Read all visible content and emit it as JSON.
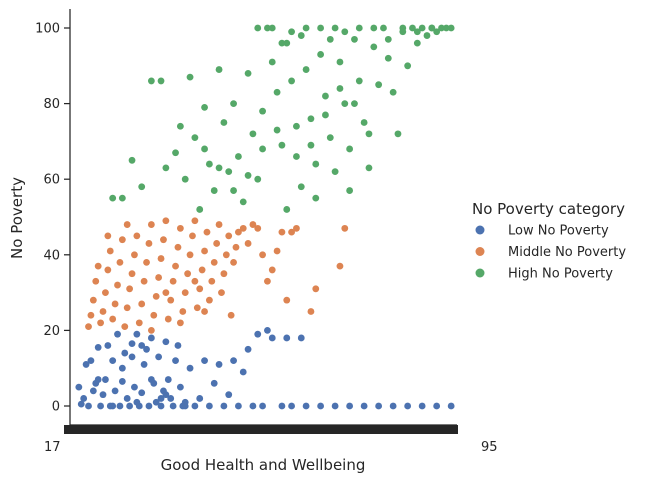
{
  "chart_data": {
    "type": "scatter",
    "title": "",
    "xlabel": "Good Health and Wellbeing",
    "ylabel": "No Poverty",
    "ylim": [
      -3,
      105
    ],
    "yticks": [
      0,
      20,
      40,
      60,
      80,
      100
    ],
    "x_tick_first_label": "17",
    "x_tick_last_label": "95",
    "xlim": [
      17,
      96
    ],
    "grid": false,
    "legend": {
      "title": "No Poverty category",
      "placement": "right"
    },
    "series": [
      {
        "name": "Low No Poverty",
        "color": "#4c72b0",
        "points": [
          [
            18,
            5
          ],
          [
            18.5,
            0.5
          ],
          [
            19,
            2
          ],
          [
            19.5,
            11
          ],
          [
            20,
            0
          ],
          [
            20.5,
            12
          ],
          [
            21,
            4
          ],
          [
            21.5,
            6
          ],
          [
            22,
            15.5
          ],
          [
            22.5,
            0
          ],
          [
            23,
            3
          ],
          [
            23.5,
            7
          ],
          [
            24,
            16
          ],
          [
            24.5,
            0
          ],
          [
            25,
            12
          ],
          [
            25.5,
            4
          ],
          [
            26,
            19
          ],
          [
            26.5,
            0
          ],
          [
            27,
            6.5
          ],
          [
            27.5,
            14
          ],
          [
            28,
            2
          ],
          [
            28.5,
            0
          ],
          [
            29,
            16.5
          ],
          [
            29.5,
            5
          ],
          [
            30,
            19
          ],
          [
            30.5,
            0
          ],
          [
            31,
            3.5
          ],
          [
            31.5,
            11
          ],
          [
            32,
            15
          ],
          [
            32.5,
            0
          ],
          [
            33,
            18
          ],
          [
            33.5,
            6
          ],
          [
            34,
            1
          ],
          [
            34.5,
            13
          ],
          [
            35,
            0
          ],
          [
            35.5,
            4
          ],
          [
            36,
            17
          ],
          [
            36.5,
            7
          ],
          [
            37,
            2
          ],
          [
            37.5,
            0
          ],
          [
            38,
            12
          ],
          [
            38.5,
            16
          ],
          [
            39,
            5
          ],
          [
            39.5,
            0
          ],
          [
            40,
            1
          ],
          [
            41,
            10
          ],
          [
            42,
            0
          ],
          [
            43,
            2
          ],
          [
            44,
            12
          ],
          [
            45,
            0
          ],
          [
            46,
            6
          ],
          [
            47,
            11
          ],
          [
            48,
            0
          ],
          [
            49,
            3
          ],
          [
            50,
            12
          ],
          [
            51,
            0
          ],
          [
            52,
            9
          ],
          [
            53,
            15
          ],
          [
            54,
            0
          ],
          [
            55,
            19
          ],
          [
            56,
            0
          ],
          [
            57,
            20
          ],
          [
            58,
            18
          ],
          [
            60,
            0
          ],
          [
            61,
            18
          ],
          [
            62,
            0
          ],
          [
            64,
            18
          ],
          [
            65,
            0
          ],
          [
            68,
            0
          ],
          [
            71,
            0
          ],
          [
            74,
            0
          ],
          [
            77,
            0
          ],
          [
            80,
            0
          ],
          [
            83,
            0
          ],
          [
            86,
            0
          ],
          [
            89,
            0
          ],
          [
            92,
            0
          ],
          [
            95,
            0
          ],
          [
            25,
            0
          ],
          [
            30,
            1
          ],
          [
            35,
            2
          ],
          [
            40,
            0
          ],
          [
            33,
            7
          ],
          [
            27,
            10
          ],
          [
            22,
            7
          ],
          [
            29,
            13
          ],
          [
            31,
            16
          ],
          [
            36,
            3
          ]
        ]
      },
      {
        "name": "Middle No Poverty",
        "color": "#dd8452",
        "points": [
          [
            20,
            21
          ],
          [
            20.5,
            24
          ],
          [
            21,
            28
          ],
          [
            21.5,
            33
          ],
          [
            22,
            37
          ],
          [
            22.5,
            22
          ],
          [
            23,
            25
          ],
          [
            23.5,
            30
          ],
          [
            24,
            36
          ],
          [
            24.5,
            41
          ],
          [
            25,
            23
          ],
          [
            25.5,
            27
          ],
          [
            26,
            32
          ],
          [
            26.5,
            38
          ],
          [
            27,
            44
          ],
          [
            27.5,
            21
          ],
          [
            28,
            26
          ],
          [
            28.5,
            31
          ],
          [
            29,
            35
          ],
          [
            29.5,
            40
          ],
          [
            30,
            45
          ],
          [
            30.5,
            22
          ],
          [
            31,
            27
          ],
          [
            31.5,
            33
          ],
          [
            32,
            38
          ],
          [
            32.5,
            43
          ],
          [
            33,
            48
          ],
          [
            33.5,
            24
          ],
          [
            34,
            29
          ],
          [
            34.5,
            34
          ],
          [
            35,
            39
          ],
          [
            35.5,
            44
          ],
          [
            36,
            49
          ],
          [
            36.5,
            23
          ],
          [
            37,
            28
          ],
          [
            37.5,
            33
          ],
          [
            38,
            37
          ],
          [
            38.5,
            42
          ],
          [
            39,
            47
          ],
          [
            39.5,
            25
          ],
          [
            40,
            30
          ],
          [
            40.5,
            35
          ],
          [
            41,
            40
          ],
          [
            41.5,
            45
          ],
          [
            42,
            49
          ],
          [
            42.5,
            26
          ],
          [
            43,
            31
          ],
          [
            43.5,
            36
          ],
          [
            44,
            41
          ],
          [
            44.5,
            46
          ],
          [
            45,
            28
          ],
          [
            45.5,
            33
          ],
          [
            46,
            38
          ],
          [
            46.5,
            43
          ],
          [
            47,
            48
          ],
          [
            47.5,
            30
          ],
          [
            48,
            35
          ],
          [
            48.5,
            40
          ],
          [
            49,
            45
          ],
          [
            49.5,
            24
          ],
          [
            50,
            38
          ],
          [
            50.5,
            42
          ],
          [
            51,
            46
          ],
          [
            52,
            47
          ],
          [
            53,
            43
          ],
          [
            54,
            48
          ],
          [
            55,
            47
          ],
          [
            56,
            40
          ],
          [
            57,
            33
          ],
          [
            58,
            36
          ],
          [
            59,
            41
          ],
          [
            60,
            46
          ],
          [
            61,
            28
          ],
          [
            62,
            46
          ],
          [
            63,
            47
          ],
          [
            66,
            25
          ],
          [
            67,
            31
          ],
          [
            72,
            37
          ],
          [
            73,
            47
          ],
          [
            28,
            48
          ],
          [
            24,
            45
          ],
          [
            33,
            20
          ],
          [
            39,
            22
          ],
          [
            44,
            25
          ],
          [
            42,
            33
          ],
          [
            36,
            30
          ]
        ]
      },
      {
        "name": "High No Poverty",
        "color": "#55a868",
        "points": [
          [
            25,
            55
          ],
          [
            27,
            55
          ],
          [
            29,
            65
          ],
          [
            31,
            58
          ],
          [
            33,
            86
          ],
          [
            35,
            86
          ],
          [
            36,
            63
          ],
          [
            38,
            67
          ],
          [
            39,
            74
          ],
          [
            40,
            60
          ],
          [
            41,
            87
          ],
          [
            42,
            71
          ],
          [
            43,
            52
          ],
          [
            44,
            79
          ],
          [
            45,
            64
          ],
          [
            46,
            57
          ],
          [
            47,
            89
          ],
          [
            48,
            75
          ],
          [
            49,
            62
          ],
          [
            50,
            80
          ],
          [
            51,
            66
          ],
          [
            52,
            54
          ],
          [
            53,
            88
          ],
          [
            54,
            72
          ],
          [
            55,
            60
          ],
          [
            56,
            78
          ],
          [
            57,
            100
          ],
          [
            58,
            91
          ],
          [
            59,
            83
          ],
          [
            60,
            69
          ],
          [
            61,
            96
          ],
          [
            62,
            86
          ],
          [
            63,
            74
          ],
          [
            64,
            98
          ],
          [
            65,
            89
          ],
          [
            66,
            76
          ],
          [
            67,
            64
          ],
          [
            68,
            93
          ],
          [
            69,
            82
          ],
          [
            70,
            71
          ],
          [
            71,
            100
          ],
          [
            72,
            91
          ],
          [
            73,
            80
          ],
          [
            74,
            68
          ],
          [
            75,
            97
          ],
          [
            76,
            86
          ],
          [
            77,
            75
          ],
          [
            78,
            63
          ],
          [
            79,
            95
          ],
          [
            80,
            85
          ],
          [
            81,
            100
          ],
          [
            82,
            92
          ],
          [
            83,
            83
          ],
          [
            84,
            72
          ],
          [
            85,
            99
          ],
          [
            86,
            90
          ],
          [
            87,
            100
          ],
          [
            88,
            96
          ],
          [
            89,
            100
          ],
          [
            90,
            98
          ],
          [
            91,
            100
          ],
          [
            92,
            99
          ],
          [
            93,
            100
          ],
          [
            94,
            100
          ],
          [
            95,
            100
          ],
          [
            55,
            100
          ],
          [
            58,
            100
          ],
          [
            60,
            96
          ],
          [
            62,
            99
          ],
          [
            65,
            100
          ],
          [
            68,
            100
          ],
          [
            70,
            97
          ],
          [
            73,
            99
          ],
          [
            76,
            100
          ],
          [
            79,
            100
          ],
          [
            82,
            97
          ],
          [
            85,
            100
          ],
          [
            88,
            99
          ],
          [
            91,
            100
          ],
          [
            74,
            57
          ],
          [
            71,
            62
          ],
          [
            67,
            55
          ],
          [
            64,
            58
          ],
          [
            61,
            52
          ],
          [
            78,
            72
          ],
          [
            75,
            80
          ],
          [
            72,
            84
          ],
          [
            69,
            77
          ],
          [
            66,
            69
          ],
          [
            63,
            66
          ],
          [
            50,
            57
          ],
          [
            53,
            61
          ],
          [
            56,
            68
          ],
          [
            59,
            73
          ],
          [
            47,
            63
          ],
          [
            44,
            68
          ]
        ]
      }
    ]
  }
}
